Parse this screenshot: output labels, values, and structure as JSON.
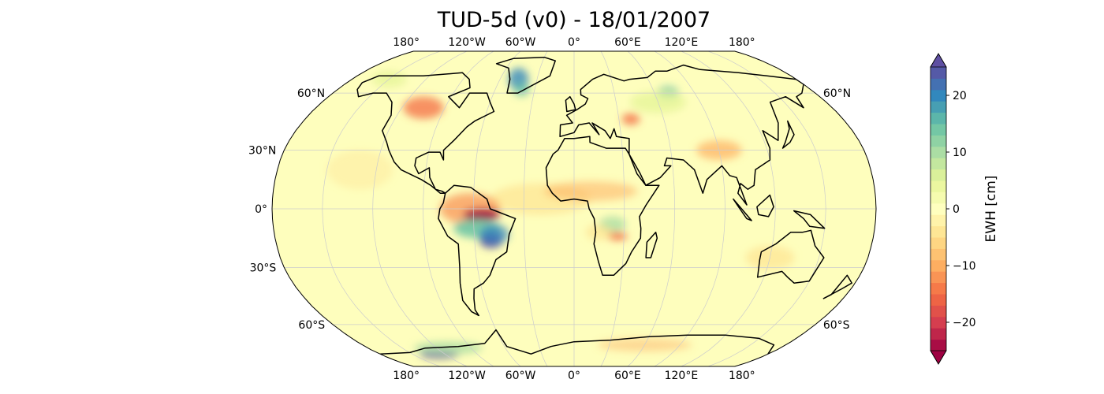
{
  "title": "TUD-5d (v0) - 18/01/2007",
  "map": {
    "projection": "Robinson",
    "lon_labels": [
      "180°",
      "120°W",
      "60°W",
      "0°",
      "60°E",
      "120°E",
      "180°"
    ],
    "lon_values": [
      -180,
      -120,
      -60,
      0,
      60,
      120,
      180
    ],
    "lat_labels_left": [
      "60°N",
      "30°N",
      "0°",
      "30°S",
      "60°S"
    ],
    "lat_labels_right": [
      "60°N",
      "60°S"
    ],
    "lat_values_left": [
      60,
      30,
      0,
      -30,
      -60
    ],
    "lat_values_right": [
      60,
      -60
    ],
    "ocean_color": "#fefebd",
    "coastline_color": "#000000",
    "gridlines": true
  },
  "colorbar": {
    "label": "EWH [cm]",
    "colormap": "Spectral",
    "range": [
      -25,
      25
    ],
    "level_step": 2,
    "extend": "both",
    "ticks": [
      20,
      10,
      0,
      -10,
      -20
    ],
    "tick_labels": [
      "20",
      "10",
      "0",
      "−10",
      "−20"
    ]
  }
}
